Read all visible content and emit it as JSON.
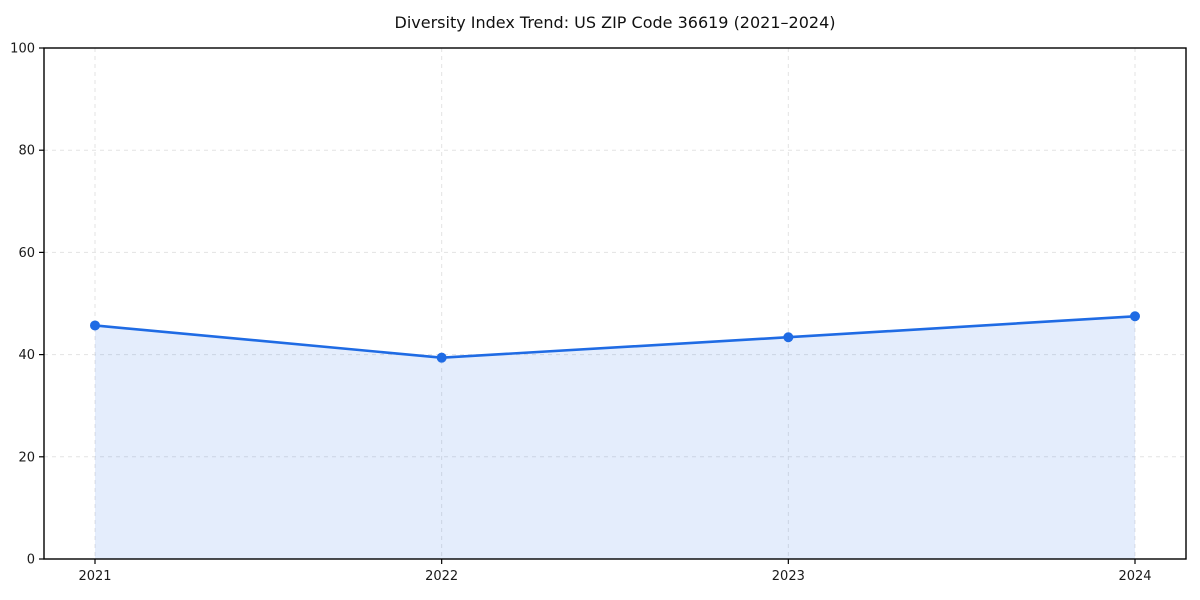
{
  "chart_data": {
    "type": "area",
    "title": "Diversity Index Trend: US ZIP Code 36619 (2021–2024)",
    "x": [
      2021,
      2022,
      2023,
      2024
    ],
    "x_tick_labels": [
      "2021",
      "2022",
      "2023",
      "2024"
    ],
    "series": [
      {
        "name": "Diversity Index",
        "values": [
          45.7,
          39.4,
          43.4,
          47.5
        ]
      }
    ],
    "xlabel": "",
    "ylabel": "",
    "ylim": [
      0,
      100
    ],
    "yticks": [
      0,
      20,
      40,
      60,
      80,
      100
    ],
    "grid": "dashed-both-axes",
    "legend_position": "none",
    "colors": {
      "line": "#1f6be4",
      "marker": "#1f6be4",
      "fill": "#1f6be4",
      "fill_opacity": 0.12,
      "grid": "#e3e3e3",
      "axis": "#000000",
      "text": "#1a1a1a",
      "background": "#ffffff"
    }
  }
}
